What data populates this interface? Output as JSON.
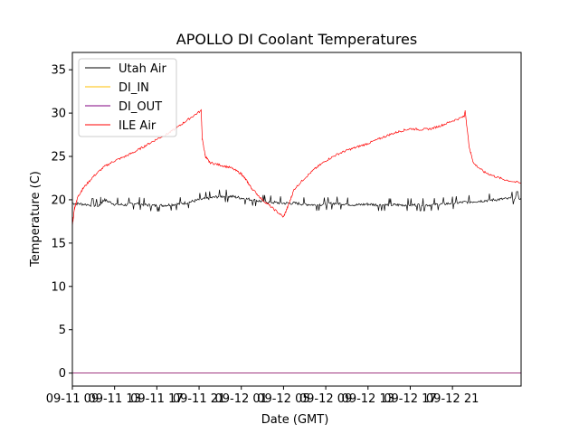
{
  "chart_data": {
    "type": "line",
    "title": "APOLLO DI Coolant Temperatures",
    "xlabel": "Date (GMT)",
    "ylabel": "Temperature (C)",
    "xlim": [
      0,
      42.5
    ],
    "ylim": [
      -1.5,
      37
    ],
    "x_unit": "hours since 09-11 09:00 GMT",
    "x_ticks": [
      {
        "x": 0,
        "label": "09-11 09"
      },
      {
        "x": 4,
        "label": "09-11 13"
      },
      {
        "x": 8,
        "label": "09-11 17"
      },
      {
        "x": 12,
        "label": "09-11 21"
      },
      {
        "x": 16,
        "label": "09-12 01"
      },
      {
        "x": 20,
        "label": "09-12 05"
      },
      {
        "x": 24,
        "label": "09-12 09"
      },
      {
        "x": 28,
        "label": "09-12 13"
      },
      {
        "x": 32,
        "label": "09-12 17"
      },
      {
        "x": 36,
        "label": "09-12 21"
      }
    ],
    "y_ticks": [
      0,
      5,
      10,
      15,
      20,
      25,
      30,
      35
    ],
    "legend_position": "top-left",
    "series": [
      {
        "name": "Utah Air",
        "color": "#000000",
        "x": [
          0,
          1,
          2.5,
          3,
          4,
          5,
          6,
          7,
          8,
          9,
          10,
          11,
          12,
          13,
          14,
          15,
          16,
          17,
          18,
          19,
          20,
          21,
          22,
          23,
          24,
          25,
          26,
          27,
          28,
          29,
          30,
          31,
          32,
          33,
          34,
          35,
          36,
          37,
          38,
          39,
          40,
          41,
          42.5
        ],
        "values": [
          19.6,
          19.5,
          19.3,
          20.0,
          19.5,
          19.4,
          19.6,
          19.4,
          19.3,
          19.4,
          19.5,
          19.7,
          20.0,
          20.2,
          20.4,
          20.4,
          20.2,
          20.0,
          19.8,
          19.7,
          19.6,
          19.6,
          19.5,
          19.4,
          19.5,
          19.6,
          19.5,
          19.4,
          19.5,
          19.4,
          19.4,
          19.4,
          19.4,
          19.4,
          19.4,
          19.5,
          19.6,
          19.7,
          19.8,
          19.9,
          20.0,
          20.1,
          20.2
        ]
      },
      {
        "name": "DI_IN",
        "color": "#ffbf00",
        "x": [
          0,
          42.5
        ],
        "values": [
          0,
          0
        ]
      },
      {
        "name": "DI_OUT",
        "color": "#800080",
        "x": [
          0,
          42.5
        ],
        "values": [
          0,
          0
        ]
      },
      {
        "name": "ILE Air",
        "color": "#ff0000",
        "x": [
          0,
          0.2,
          0.5,
          1,
          2,
          3,
          4,
          5,
          6,
          7,
          8,
          9,
          10,
          11,
          12.2,
          12.3,
          12.6,
          13,
          14,
          15,
          16,
          16.5,
          17,
          18,
          19,
          20,
          20.5,
          21,
          22,
          23,
          24,
          25,
          26,
          27,
          28,
          29,
          30,
          31,
          32,
          33,
          34,
          35,
          36,
          37.1,
          37.2,
          37.6,
          38,
          39,
          40,
          41,
          42.5
        ],
        "values": [
          17.0,
          19.0,
          20.3,
          21.3,
          22.7,
          23.8,
          24.5,
          25.0,
          25.6,
          26.3,
          27.0,
          27.6,
          28.4,
          29.3,
          30.3,
          27.0,
          25.0,
          24.3,
          24.0,
          23.7,
          23.0,
          22.2,
          21.3,
          20.0,
          19.0,
          18.0,
          19.5,
          21.2,
          22.5,
          23.6,
          24.5,
          25.2,
          25.7,
          26.1,
          26.5,
          27.0,
          27.5,
          27.9,
          28.2,
          28.1,
          28.2,
          28.6,
          29.1,
          29.6,
          30.2,
          26.0,
          24.2,
          23.2,
          22.7,
          22.3,
          21.9
        ]
      }
    ]
  }
}
